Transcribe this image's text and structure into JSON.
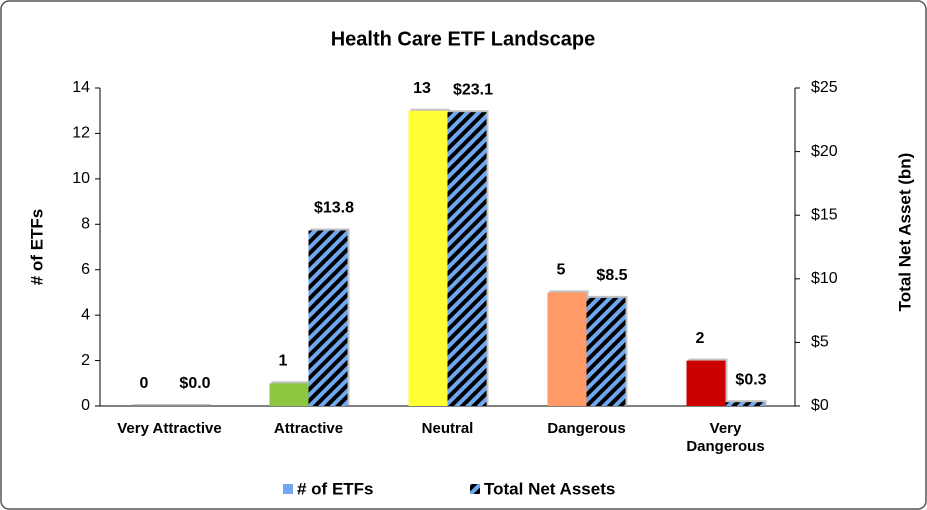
{
  "chart_data": {
    "type": "bar",
    "title": "Health Care ETF Landscape",
    "categories": [
      "Very Attractive",
      "Attractive",
      "Neutral",
      "Dangerous",
      "Very Dangerous"
    ],
    "y_label": "# of ETFs",
    "y2_label": "Total Net Asset (bn)",
    "ylim": [
      0,
      14
    ],
    "yticks": [
      0,
      2,
      4,
      6,
      8,
      10,
      12,
      14
    ],
    "y2lim": [
      0,
      25
    ],
    "y2ticks": [
      {
        "value": 0,
        "label": "$0"
      },
      {
        "value": 5,
        "label": "$5"
      },
      {
        "value": 10,
        "label": "$10"
      },
      {
        "value": 15,
        "label": "$15"
      },
      {
        "value": 20,
        "label": "$20"
      },
      {
        "value": 25,
        "label": "$25"
      }
    ],
    "legend": "bottom",
    "series": [
      {
        "name": "# of ETFs",
        "color": "#6fa8f0",
        "colors": [
          "#aaaaaa",
          "#8dc63f",
          "#ffff33",
          "#ff9966",
          "#cc0000"
        ],
        "values": [
          0,
          1,
          13,
          5,
          2
        ]
      },
      {
        "name": "Total Net Assets",
        "color": "#6fa8f0",
        "axis": "y2",
        "hatch": true,
        "values": [
          0.0,
          13.8,
          23.1,
          8.5,
          0.3
        ],
        "value_labels": [
          "$0.0",
          "$13.8",
          "$23.1",
          "$8.5",
          "$0.3"
        ]
      }
    ]
  }
}
